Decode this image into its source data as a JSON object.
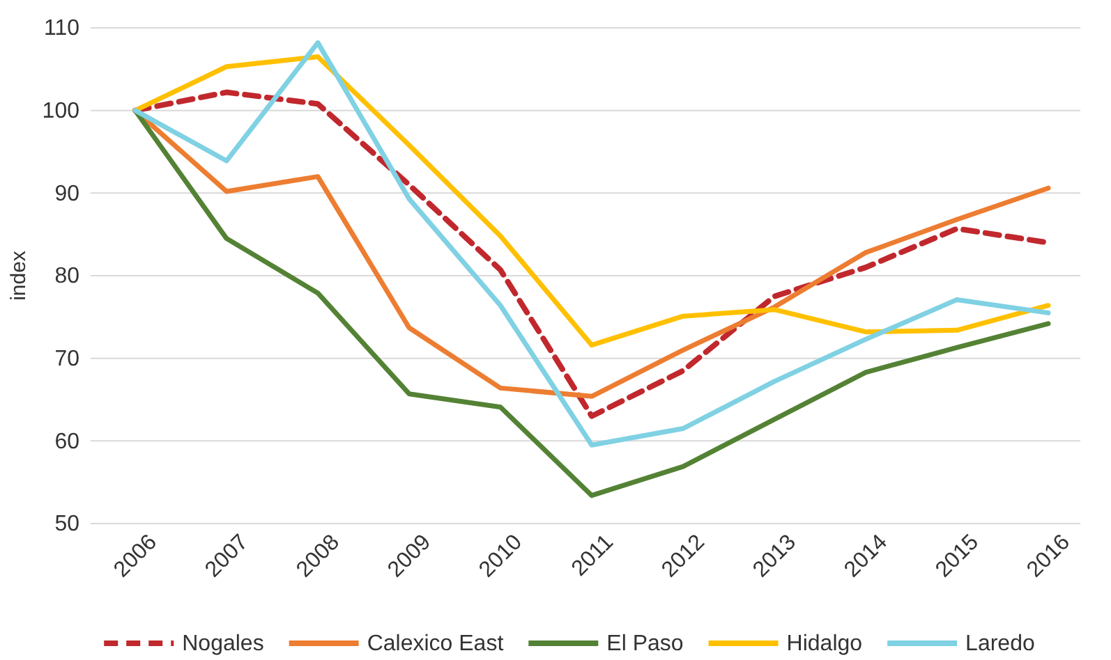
{
  "chart_data": {
    "type": "line",
    "ylabel": "index",
    "categories": [
      "2006",
      "2007",
      "2008",
      "2009",
      "2010",
      "2011",
      "2012",
      "2013",
      "2014",
      "2015",
      "2016"
    ],
    "ylim": [
      50,
      110
    ],
    "yticks": [
      50,
      60,
      70,
      80,
      90,
      100,
      110
    ],
    "grid": "y",
    "legend": "bottom",
    "marker": "none",
    "series": [
      {
        "name": "Nogales",
        "color": "#c0282d",
        "line_style": "dashed",
        "values": [
          100,
          102.2,
          100.8,
          91,
          80.7,
          63,
          68.5,
          77.5,
          81,
          85.7,
          84
        ]
      },
      {
        "name": "Calexico East",
        "color": "#ed7d31",
        "line_style": "solid",
        "values": [
          100,
          90.2,
          92,
          73.7,
          66.4,
          65.4,
          71,
          76.2,
          82.8,
          86.8,
          90.6
        ]
      },
      {
        "name": "El Paso",
        "color": "#548235",
        "line_style": "solid",
        "values": [
          100,
          84.5,
          77.9,
          65.7,
          64.1,
          53.4,
          56.9,
          62.6,
          68.3,
          71.3,
          74.2
        ]
      },
      {
        "name": "Hidalgo",
        "color": "#ffc000",
        "line_style": "solid",
        "values": [
          100,
          105.3,
          106.5,
          95.8,
          84.8,
          71.6,
          75.1,
          75.9,
          73.2,
          73.4,
          76.4
        ]
      },
      {
        "name": "Laredo",
        "color": "#7fd1e3",
        "line_style": "solid",
        "values": [
          100,
          93.9,
          108.2,
          89.3,
          76.4,
          59.5,
          61.5,
          67.2,
          72.3,
          77.1,
          75.5
        ]
      }
    ]
  }
}
